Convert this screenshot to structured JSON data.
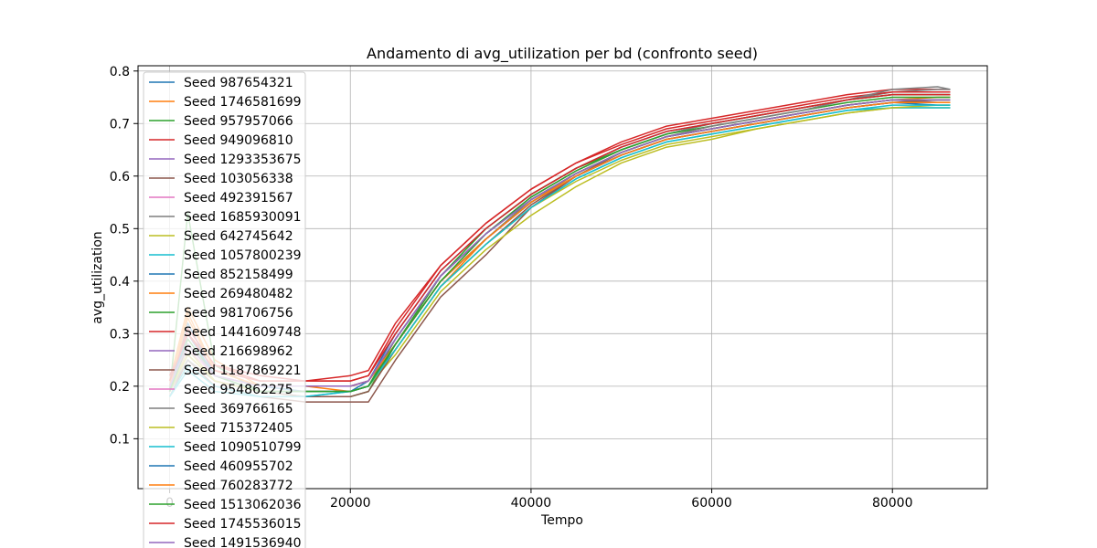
{
  "chart_data": {
    "type": "line",
    "title": "Andamento di avg_utilization per bd (confronto seed)",
    "xlabel": "Tempo",
    "ylabel": "avg_utilization",
    "xlim": [
      -3500,
      90500
    ],
    "ylim": [
      0.005,
      0.81
    ],
    "xticks": [
      0,
      20000,
      40000,
      60000,
      80000
    ],
    "xtick_labels": [
      "0",
      "20000",
      "40000",
      "60000",
      "80000"
    ],
    "yticks": [
      0.1,
      0.2,
      0.3,
      0.4,
      0.5,
      0.6,
      0.7,
      0.8
    ],
    "ytick_labels": [
      "0.1",
      "0.2",
      "0.3",
      "0.4",
      "0.5",
      "0.6",
      "0.7",
      "0.8"
    ],
    "grid": true,
    "legend": "upper left",
    "x": [
      0,
      2000,
      5000,
      10000,
      15000,
      20000,
      22000,
      25000,
      30000,
      35000,
      40000,
      45000,
      50000,
      55000,
      60000,
      65000,
      70000,
      75000,
      80000,
      85000,
      86400
    ],
    "series": [
      {
        "name": "Seed 987654321",
        "color": "#1f77b4",
        "values": [
          0.2,
          0.3,
          0.23,
          0.2,
          0.19,
          0.19,
          0.21,
          0.3,
          0.42,
          0.5,
          0.565,
          0.615,
          0.655,
          0.685,
          0.7,
          0.715,
          0.73,
          0.745,
          0.755,
          0.755,
          0.755
        ]
      },
      {
        "name": "Seed 1746581699",
        "color": "#ff7f0e",
        "values": [
          0.21,
          0.35,
          0.25,
          0.2,
          0.2,
          0.19,
          0.2,
          0.27,
          0.39,
          0.48,
          0.55,
          0.605,
          0.645,
          0.675,
          0.69,
          0.705,
          0.72,
          0.735,
          0.745,
          0.745,
          0.745
        ]
      },
      {
        "name": "Seed 957957066",
        "color": "#2ca02c",
        "values": [
          0.19,
          0.53,
          0.24,
          0.19,
          0.18,
          0.18,
          0.19,
          0.28,
          0.41,
          0.5,
          0.565,
          0.615,
          0.65,
          0.68,
          0.7,
          0.715,
          0.73,
          0.745,
          0.755,
          0.755,
          0.755
        ]
      },
      {
        "name": "Seed 949096810",
        "color": "#d62728",
        "values": [
          0.22,
          0.3,
          0.24,
          0.22,
          0.21,
          0.22,
          0.23,
          0.32,
          0.43,
          0.51,
          0.575,
          0.625,
          0.665,
          0.695,
          0.71,
          0.725,
          0.74,
          0.755,
          0.765,
          0.765,
          0.765
        ]
      },
      {
        "name": "Seed 1293353675",
        "color": "#9467bd",
        "values": [
          0.2,
          0.28,
          0.22,
          0.2,
          0.2,
          0.2,
          0.21,
          0.29,
          0.41,
          0.49,
          0.555,
          0.605,
          0.645,
          0.675,
          0.69,
          0.705,
          0.72,
          0.735,
          0.745,
          0.74,
          0.74
        ]
      },
      {
        "name": "Seed 103056338",
        "color": "#8c564b",
        "values": [
          0.18,
          0.25,
          0.2,
          0.18,
          0.17,
          0.17,
          0.17,
          0.25,
          0.37,
          0.45,
          0.54,
          0.6,
          0.645,
          0.675,
          0.69,
          0.705,
          0.72,
          0.735,
          0.745,
          0.745,
          0.745
        ]
      },
      {
        "name": "Seed 492391567",
        "color": "#e377c2",
        "values": [
          0.19,
          0.26,
          0.21,
          0.19,
          0.19,
          0.19,
          0.2,
          0.28,
          0.4,
          0.48,
          0.55,
          0.6,
          0.64,
          0.67,
          0.685,
          0.7,
          0.715,
          0.73,
          0.74,
          0.74,
          0.74
        ]
      },
      {
        "name": "Seed 1685930091",
        "color": "#7f7f7f",
        "values": [
          0.2,
          0.3,
          0.22,
          0.2,
          0.2,
          0.2,
          0.21,
          0.29,
          0.41,
          0.49,
          0.56,
          0.61,
          0.65,
          0.68,
          0.7,
          0.715,
          0.73,
          0.745,
          0.76,
          0.765,
          0.765
        ]
      },
      {
        "name": "Seed 642745642",
        "color": "#bcbd22",
        "values": [
          0.19,
          0.27,
          0.21,
          0.19,
          0.19,
          0.19,
          0.2,
          0.26,
          0.38,
          0.46,
          0.525,
          0.58,
          0.625,
          0.655,
          0.67,
          0.69,
          0.705,
          0.72,
          0.73,
          0.73,
          0.73
        ]
      },
      {
        "name": "Seed 1057800239",
        "color": "#17becf",
        "values": [
          0.18,
          0.24,
          0.2,
          0.18,
          0.18,
          0.19,
          0.2,
          0.27,
          0.39,
          0.47,
          0.54,
          0.595,
          0.635,
          0.665,
          0.68,
          0.695,
          0.71,
          0.725,
          0.73,
          0.73,
          0.73
        ]
      },
      {
        "name": "Seed 852158499",
        "color": "#1f77b4",
        "values": [
          0.19,
          0.32,
          0.22,
          0.19,
          0.19,
          0.19,
          0.2,
          0.28,
          0.4,
          0.48,
          0.55,
          0.6,
          0.64,
          0.67,
          0.685,
          0.7,
          0.715,
          0.73,
          0.74,
          0.735,
          0.735
        ]
      },
      {
        "name": "Seed 269480482",
        "color": "#ff7f0e",
        "values": [
          0.2,
          0.34,
          0.23,
          0.2,
          0.2,
          0.2,
          0.21,
          0.28,
          0.4,
          0.48,
          0.55,
          0.605,
          0.645,
          0.675,
          0.69,
          0.705,
          0.72,
          0.735,
          0.745,
          0.75,
          0.75
        ]
      },
      {
        "name": "Seed 981706756",
        "color": "#2ca02c",
        "values": [
          0.19,
          0.29,
          0.22,
          0.19,
          0.19,
          0.19,
          0.2,
          0.29,
          0.41,
          0.49,
          0.56,
          0.61,
          0.65,
          0.68,
          0.695,
          0.71,
          0.725,
          0.74,
          0.75,
          0.75,
          0.75
        ]
      },
      {
        "name": "Seed 1441609748",
        "color": "#d62728",
        "values": [
          0.21,
          0.31,
          0.24,
          0.21,
          0.21,
          0.21,
          0.22,
          0.31,
          0.43,
          0.51,
          0.575,
          0.625,
          0.66,
          0.69,
          0.705,
          0.72,
          0.735,
          0.75,
          0.76,
          0.76,
          0.76
        ]
      },
      {
        "name": "Seed 216698962",
        "color": "#9467bd",
        "values": [
          0.2,
          0.28,
          0.22,
          0.2,
          0.2,
          0.2,
          0.21,
          0.29,
          0.41,
          0.49,
          0.555,
          0.605,
          0.645,
          0.675,
          0.69,
          0.705,
          0.72,
          0.735,
          0.745,
          0.745,
          0.745
        ]
      },
      {
        "name": "Seed 1187869221",
        "color": "#8c564b",
        "values": [
          0.19,
          0.26,
          0.21,
          0.19,
          0.18,
          0.18,
          0.19,
          0.27,
          0.39,
          0.47,
          0.545,
          0.6,
          0.64,
          0.67,
          0.685,
          0.7,
          0.715,
          0.73,
          0.74,
          0.745,
          0.745
        ]
      },
      {
        "name": "Seed 954862275",
        "color": "#e377c2",
        "values": [
          0.2,
          0.27,
          0.22,
          0.2,
          0.2,
          0.2,
          0.21,
          0.28,
          0.4,
          0.48,
          0.55,
          0.6,
          0.64,
          0.67,
          0.685,
          0.7,
          0.715,
          0.73,
          0.74,
          0.74,
          0.74
        ]
      },
      {
        "name": "Seed 369766165",
        "color": "#7f7f7f",
        "values": [
          0.19,
          0.25,
          0.21,
          0.19,
          0.19,
          0.19,
          0.2,
          0.28,
          0.4,
          0.48,
          0.555,
          0.605,
          0.645,
          0.675,
          0.695,
          0.71,
          0.725,
          0.745,
          0.765,
          0.77,
          0.765
        ]
      },
      {
        "name": "Seed 715372405",
        "color": "#bcbd22",
        "values": [
          0.19,
          0.26,
          0.21,
          0.19,
          0.19,
          0.19,
          0.2,
          0.27,
          0.39,
          0.47,
          0.54,
          0.59,
          0.63,
          0.66,
          0.675,
          0.69,
          0.705,
          0.72,
          0.73,
          0.735,
          0.735
        ]
      },
      {
        "name": "Seed 1090510799",
        "color": "#17becf",
        "values": [
          0.18,
          0.23,
          0.19,
          0.18,
          0.18,
          0.19,
          0.2,
          0.27,
          0.39,
          0.47,
          0.54,
          0.595,
          0.635,
          0.665,
          0.68,
          0.695,
          0.71,
          0.725,
          0.735,
          0.735,
          0.735
        ]
      },
      {
        "name": "Seed 460955702",
        "color": "#1f77b4",
        "values": [
          0.19,
          0.3,
          0.22,
          0.19,
          0.19,
          0.19,
          0.2,
          0.28,
          0.4,
          0.48,
          0.55,
          0.6,
          0.64,
          0.67,
          0.685,
          0.7,
          0.715,
          0.73,
          0.74,
          0.74,
          0.74
        ]
      },
      {
        "name": "Seed 760283772",
        "color": "#ff7f0e",
        "values": [
          0.2,
          0.33,
          0.23,
          0.2,
          0.2,
          0.2,
          0.21,
          0.28,
          0.4,
          0.48,
          0.55,
          0.6,
          0.64,
          0.67,
          0.685,
          0.7,
          0.715,
          0.73,
          0.74,
          0.74,
          0.74
        ]
      },
      {
        "name": "Seed 1513062036",
        "color": "#2ca02c",
        "values": [
          0.19,
          0.28,
          0.22,
          0.19,
          0.19,
          0.19,
          0.2,
          0.28,
          0.4,
          0.49,
          0.555,
          0.605,
          0.645,
          0.675,
          0.69,
          0.705,
          0.72,
          0.735,
          0.745,
          0.745,
          0.745
        ]
      },
      {
        "name": "Seed 1745536015",
        "color": "#d62728",
        "values": [
          0.21,
          0.3,
          0.23,
          0.21,
          0.21,
          0.21,
          0.22,
          0.3,
          0.42,
          0.5,
          0.565,
          0.615,
          0.655,
          0.685,
          0.7,
          0.715,
          0.73,
          0.745,
          0.755,
          0.755,
          0.755
        ]
      },
      {
        "name": "Seed 1491536940",
        "color": "#9467bd",
        "values": [
          0.2,
          0.28,
          0.22,
          0.2,
          0.2,
          0.2,
          0.21,
          0.29,
          0.41,
          0.49,
          0.555,
          0.605,
          0.645,
          0.675,
          0.69,
          0.705,
          0.72,
          0.735,
          0.745,
          0.745,
          0.745
        ]
      }
    ]
  }
}
